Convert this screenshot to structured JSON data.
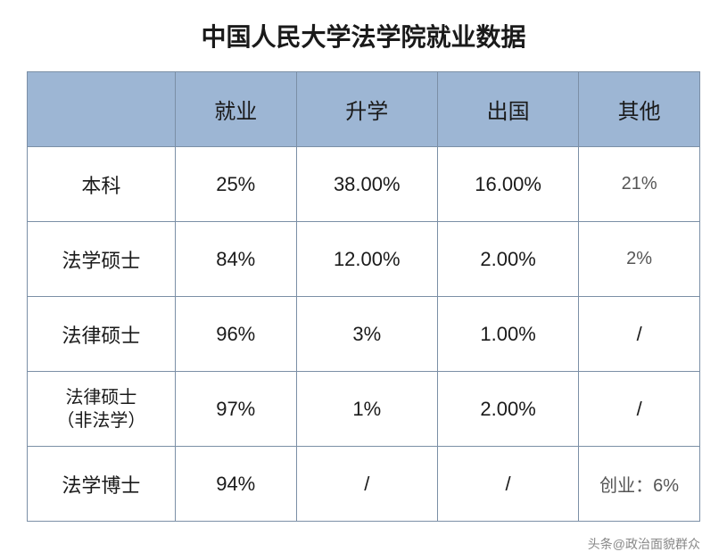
{
  "title": "中国人民大学法学院就业数据",
  "table": {
    "header_bg": "#9db6d4",
    "border_color": "#7b8fa6",
    "columns": [
      "",
      "就业",
      "升学",
      "出国",
      "其他"
    ],
    "column_widths": [
      "22%",
      "18%",
      "21%",
      "21%",
      "18%"
    ],
    "rows": [
      {
        "label": "本科",
        "cells": [
          "25%",
          "38.00%",
          "16.00%",
          "21%"
        ],
        "other_small": true
      },
      {
        "label": "法学硕士",
        "cells": [
          "84%",
          "12.00%",
          "2.00%",
          "2%"
        ],
        "other_small": true
      },
      {
        "label": "法律硕士",
        "cells": [
          "96%",
          "3%",
          "1.00%",
          "/"
        ]
      },
      {
        "label": "法律硕士\n（非法学）",
        "cells": [
          "97%",
          "1%",
          "2.00%",
          "/"
        ],
        "label_small": true
      },
      {
        "label": "法学博士",
        "cells": [
          "94%",
          "/",
          "/",
          "创业：6%"
        ],
        "other_small": true
      }
    ]
  },
  "watermark": "头条@政治面貌群众"
}
